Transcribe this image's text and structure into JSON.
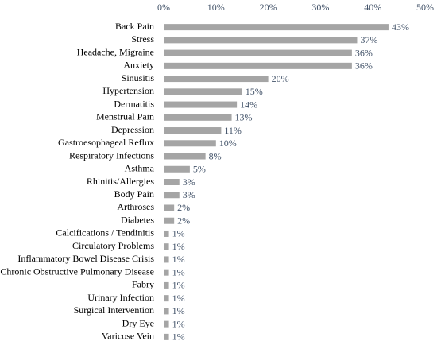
{
  "chart_data": {
    "type": "hbar",
    "categories": [
      "Back Pain",
      "Stress",
      "Headache, Migraine",
      "Anxiety",
      "Sinusitis",
      "Hypertension",
      "Dermatitis",
      "Menstrual Pain",
      "Depression",
      "Gastroesophageal Reflux",
      "Respiratory Infections",
      "Asthma",
      "Rhinitis/Allergies",
      "Body Pain",
      "Arthroses",
      "Diabetes",
      "Calcifications / Tendinitis",
      "Circulatory Problems",
      "Inflammatory Bowel Disease Crisis",
      "Chronic Obstructive Pulmonary Disease",
      "Fabry",
      "Urinary Infection",
      "Surgical Intervention",
      "Dry Eye",
      "Varicose Vein"
    ],
    "values": [
      43,
      37,
      36,
      36,
      20,
      15,
      14,
      13,
      11,
      10,
      8,
      5,
      3,
      3,
      2,
      2,
      1,
      1,
      1,
      1,
      1,
      1,
      1,
      1,
      1
    ],
    "value_labels": [
      "43%",
      "37%",
      "36%",
      "36%",
      "20%",
      "15%",
      "14%",
      "13%",
      "11%",
      "10%",
      "8%",
      "5%",
      "3%",
      "3%",
      "2%",
      "2%",
      "1%",
      "1%",
      "1%",
      "1%",
      "1%",
      "1%",
      "1%",
      "1%",
      "1%"
    ],
    "color": "#a5a5a5",
    "xlim": [
      0,
      50
    ],
    "xticks": [
      {
        "value": 0,
        "label": "0%"
      },
      {
        "value": 10,
        "label": "10%"
      },
      {
        "value": 20,
        "label": "20%"
      },
      {
        "value": 30,
        "label": "30%"
      },
      {
        "value": 40,
        "label": "40%"
      },
      {
        "value": 50,
        "label": "50%"
      }
    ],
    "grid": false
  }
}
